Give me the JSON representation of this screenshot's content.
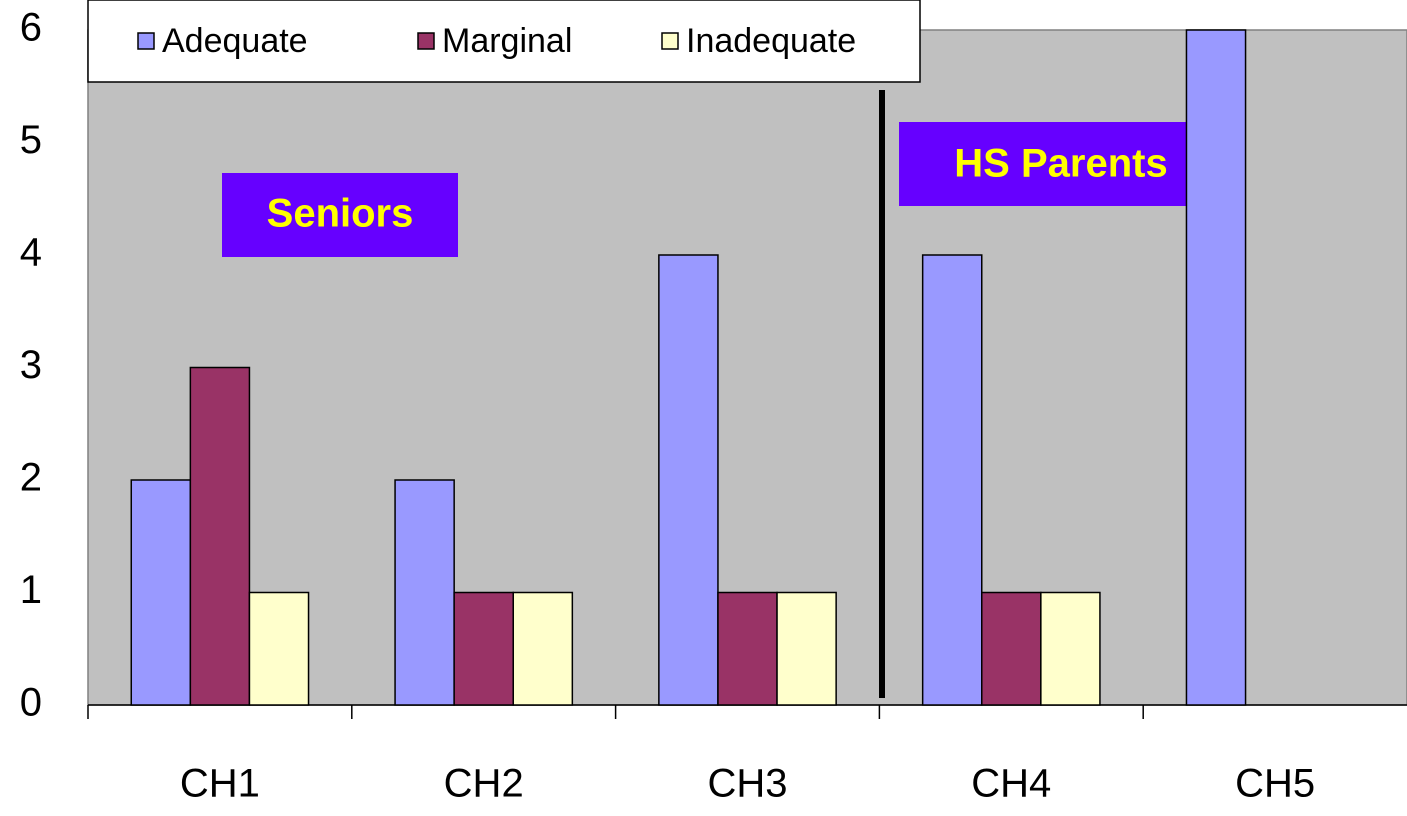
{
  "chart_data": {
    "type": "bar",
    "categories": [
      "CH1",
      "CH2",
      "CH3",
      "CH4",
      "CH5"
    ],
    "series": [
      {
        "name": "Adequate",
        "color": "#9999ff",
        "values": [
          2,
          2,
          4,
          4,
          6
        ]
      },
      {
        "name": "Marginal",
        "color": "#993366",
        "values": [
          3,
          1,
          1,
          1,
          0
        ]
      },
      {
        "name": "Inadequate",
        "color": "#ffffcc",
        "values": [
          1,
          1,
          1,
          1,
          0
        ]
      }
    ],
    "ylim": [
      0,
      6
    ],
    "yticks": [
      0,
      1,
      2,
      3,
      4,
      5,
      6
    ],
    "grid": false,
    "legend": "top-left",
    "annotations": [
      "Seniors",
      "HS Parents"
    ]
  }
}
